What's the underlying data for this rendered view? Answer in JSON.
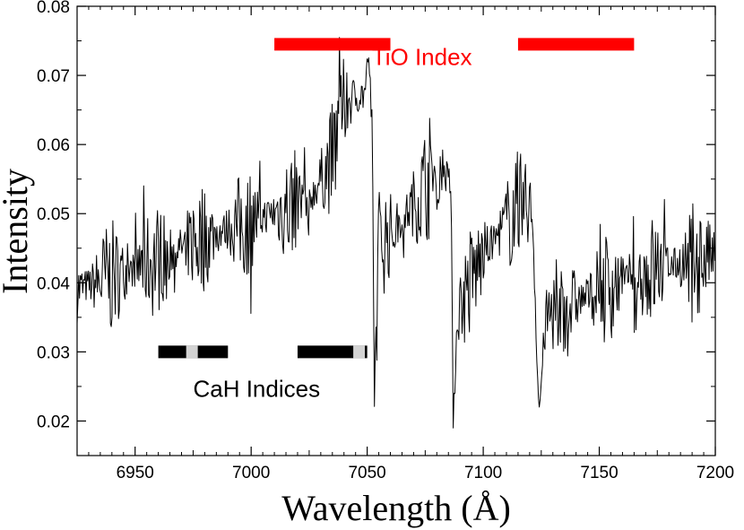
{
  "chart_data": {
    "type": "line",
    "title": "",
    "xlabel": "Wavelength (Å)",
    "ylabel": "Intensity",
    "xlim": [
      6925,
      7200
    ],
    "ylim": [
      0.015,
      0.08
    ],
    "x_ticks": [
      6950,
      7000,
      7050,
      7100,
      7150,
      7200
    ],
    "y_ticks": [
      0.02,
      0.03,
      0.04,
      0.05,
      0.06,
      0.07,
      0.08
    ],
    "x_tick_labels": [
      "6950",
      "7000",
      "7050",
      "7100",
      "7150",
      "7200"
    ],
    "y_tick_labels": [
      "0.02",
      "0.03",
      "0.04",
      "0.05",
      "0.06",
      "0.07",
      "0.08"
    ],
    "grid": false,
    "series": [
      {
        "name": "spectrum",
        "color": "#000000",
        "envelope": [
          {
            "x": 6925,
            "y": 0.039
          },
          {
            "x": 6950,
            "y": 0.042
          },
          {
            "x": 6975,
            "y": 0.046
          },
          {
            "x": 7000,
            "y": 0.049
          },
          {
            "x": 7025,
            "y": 0.052
          },
          {
            "x": 7035,
            "y": 0.058
          },
          {
            "x": 7040,
            "y": 0.066
          },
          {
            "x": 7052,
            "y": 0.068
          },
          {
            "x": 7053,
            "y": 0.024
          },
          {
            "x": 7055,
            "y": 0.046
          },
          {
            "x": 7060,
            "y": 0.047
          },
          {
            "x": 7082,
            "y": 0.057
          },
          {
            "x": 7086,
            "y": 0.054
          },
          {
            "x": 7087,
            "y": 0.021
          },
          {
            "x": 7089,
            "y": 0.036
          },
          {
            "x": 7100,
            "y": 0.044
          },
          {
            "x": 7115,
            "y": 0.051
          },
          {
            "x": 7121,
            "y": 0.051
          },
          {
            "x": 7122,
            "y": 0.042
          },
          {
            "x": 7124,
            "y": 0.021
          },
          {
            "x": 7127,
            "y": 0.035
          },
          {
            "x": 7150,
            "y": 0.039
          },
          {
            "x": 7175,
            "y": 0.042
          },
          {
            "x": 7200,
            "y": 0.044
          }
        ]
      }
    ],
    "bands": [
      {
        "name": "tio-band-1",
        "x": [
          7010,
          7060
        ],
        "y": 0.0745,
        "color": "#ff0000"
      },
      {
        "name": "tio-band-2",
        "x": [
          7115,
          7165
        ],
        "y": 0.0745,
        "color": "#ff0000"
      },
      {
        "name": "cah-band-1",
        "x": [
          6960,
          6990
        ],
        "y": 0.03,
        "color": "#000000",
        "gap": [
          6972,
          6977
        ]
      },
      {
        "name": "cah-band-2",
        "x": [
          7020,
          7050
        ],
        "y": 0.03,
        "color": "#000000",
        "gap": [
          7044,
          7049
        ]
      }
    ],
    "annotations": [
      {
        "name": "tio-index-label",
        "text": "TiO Index",
        "x": 7052,
        "y": 0.0715,
        "color": "#ff0000"
      },
      {
        "name": "cah-indices-label",
        "text": "CaH Indices",
        "x": 6975,
        "y": 0.0235,
        "color": "#000000"
      }
    ]
  }
}
